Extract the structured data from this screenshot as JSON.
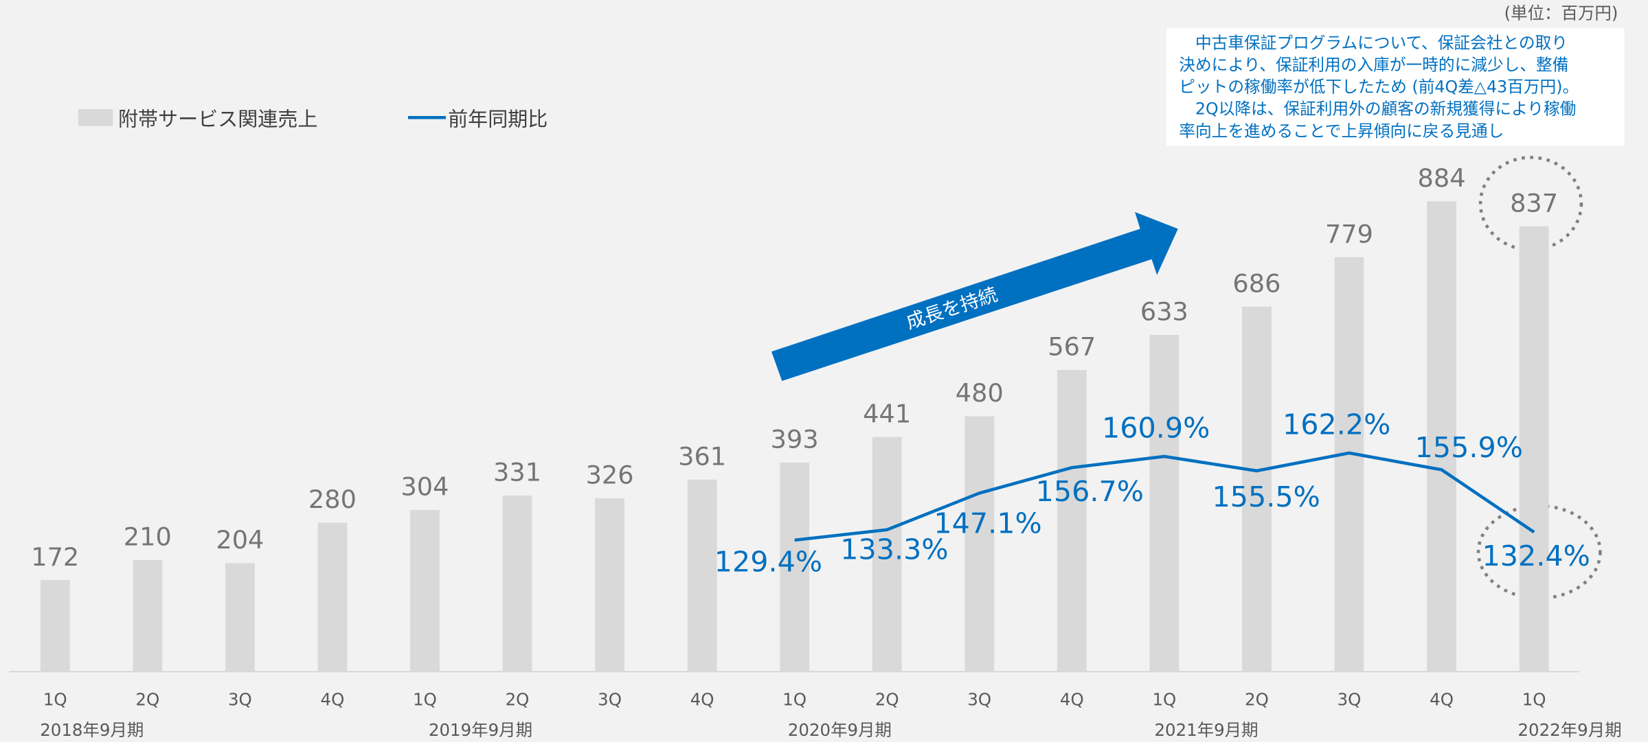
{
  "chart_data": {
    "type": "bar_line",
    "unit_note": "(単位：百万円)",
    "annotation": [
      "　中古車保証プログラムについて、保証会社との取り",
      "決めにより、保証利用の入庫が一時的に減少し、整備",
      "ピットの稼働率が低下したため (前4Q差△43百万円)。",
      "　2Q以降は、保証利用外の顧客の新規獲得により稼働",
      "率向上を進めることで上昇傾向に戻る見通し"
    ],
    "arrow_label": "成長を持続",
    "categories": [
      "1Q",
      "2Q",
      "3Q",
      "4Q",
      "1Q",
      "2Q",
      "3Q",
      "4Q",
      "1Q",
      "2Q",
      "3Q",
      "4Q",
      "1Q",
      "2Q",
      "3Q",
      "4Q",
      "1Q"
    ],
    "periods": [
      "2018年9月期",
      "2019年9月期",
      "2020年9月期",
      "2021年9月期",
      "2022年9月期"
    ],
    "series": [
      {
        "name": "附帯サービス関連売上",
        "color": "#d9d9d9",
        "values": [
          172,
          210,
          204,
          280,
          304,
          331,
          326,
          361,
          393,
          441,
          480,
          567,
          633,
          686,
          779,
          884,
          837
        ]
      },
      {
        "name": "前年同期比",
        "color": "#0070c0",
        "values": [
          null,
          null,
          null,
          null,
          null,
          null,
          null,
          null,
          129.4,
          133.3,
          147.1,
          156.7,
          160.9,
          155.5,
          162.2,
          155.9,
          132.4
        ],
        "value_labels": [
          null,
          null,
          null,
          null,
          null,
          null,
          null,
          null,
          "129.4%",
          "133.3%",
          "147.1%",
          "156.7%",
          "160.9%",
          "155.5%",
          "162.2%",
          "155.9%",
          "132.4%"
        ]
      }
    ]
  }
}
